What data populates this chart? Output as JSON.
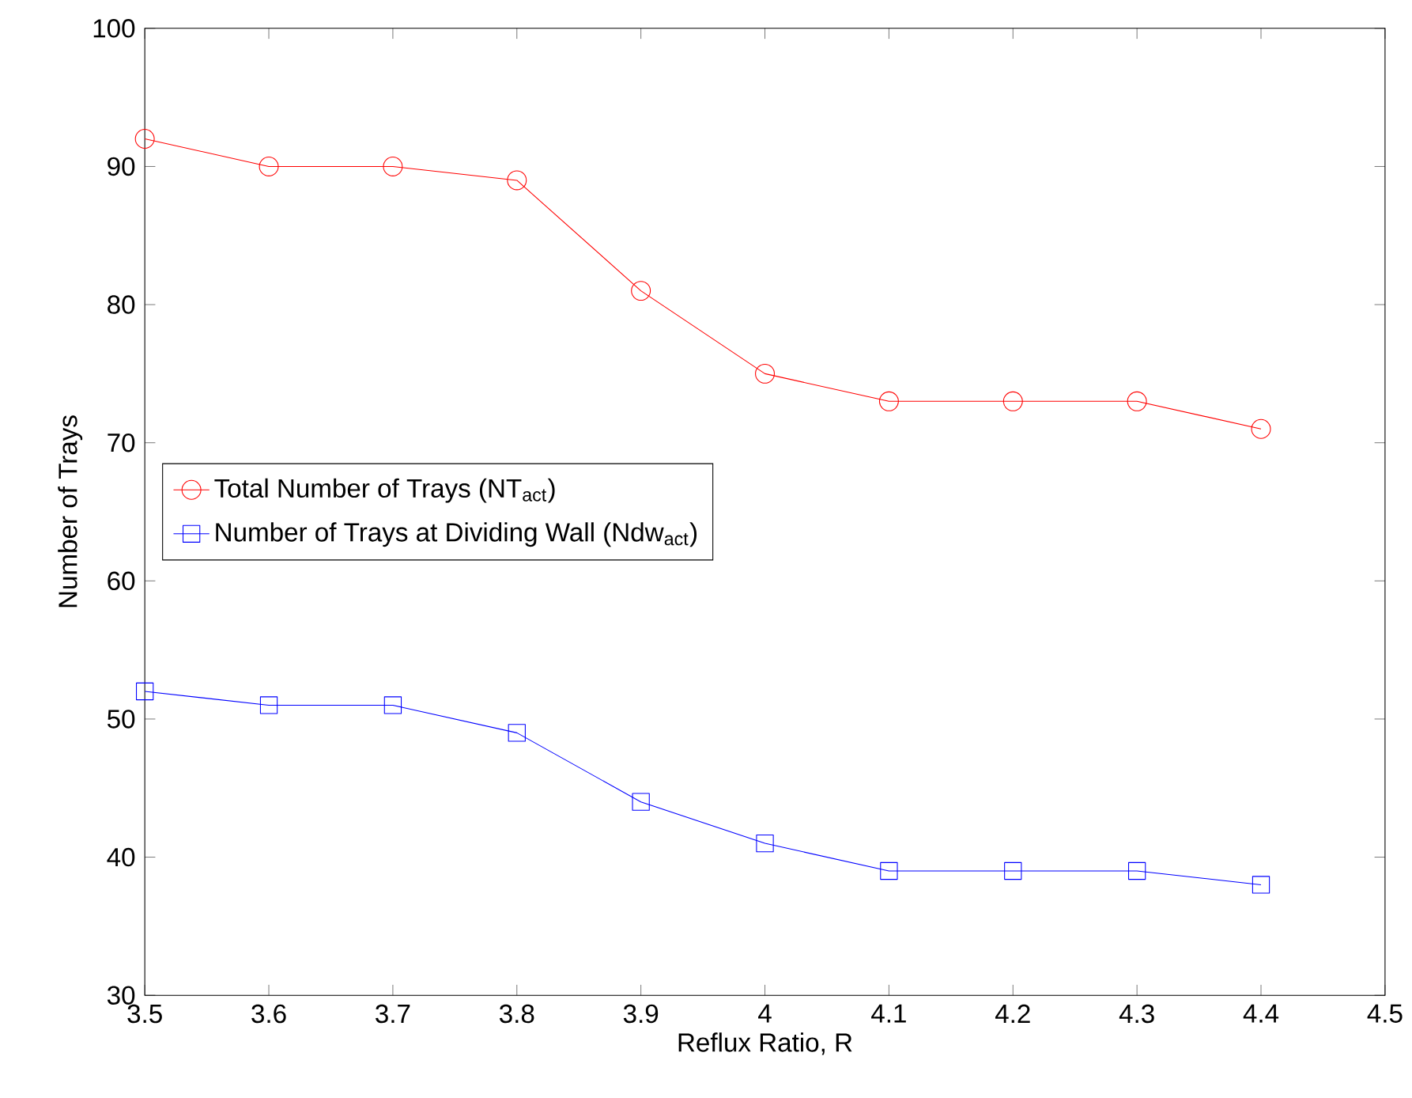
{
  "chart_data": {
    "type": "line",
    "xlabel": "Reflux Ratio, R",
    "ylabel": "Number of Trays",
    "x": [
      3.5,
      3.6,
      3.7,
      3.8,
      3.9,
      4.0,
      4.1,
      4.2,
      4.3,
      4.4
    ],
    "series": [
      {
        "name": "Total Number of Trays (NT$_{act}$)",
        "color": "#ff0000",
        "marker": "circle",
        "values": [
          92,
          90,
          90,
          89,
          81,
          75,
          73,
          73,
          73,
          71
        ]
      },
      {
        "name": "Number of Trays at Dividing Wall (Ndw$_{act}$)",
        "color": "#0000ff",
        "marker": "square",
        "values": [
          52,
          51,
          51,
          49,
          44,
          41,
          39,
          39,
          39,
          38
        ]
      }
    ],
    "xlim": [
      3.5,
      4.5
    ],
    "xticks": [
      3.5,
      3.6,
      3.7,
      3.8,
      3.9,
      4,
      4.1,
      4.2,
      4.3,
      4.4,
      4.5
    ],
    "ylim": [
      30,
      100
    ],
    "yticks": [
      30,
      40,
      50,
      60,
      70,
      80,
      90,
      100
    ],
    "grid": false,
    "legend": "left",
    "line_style": "solid"
  }
}
